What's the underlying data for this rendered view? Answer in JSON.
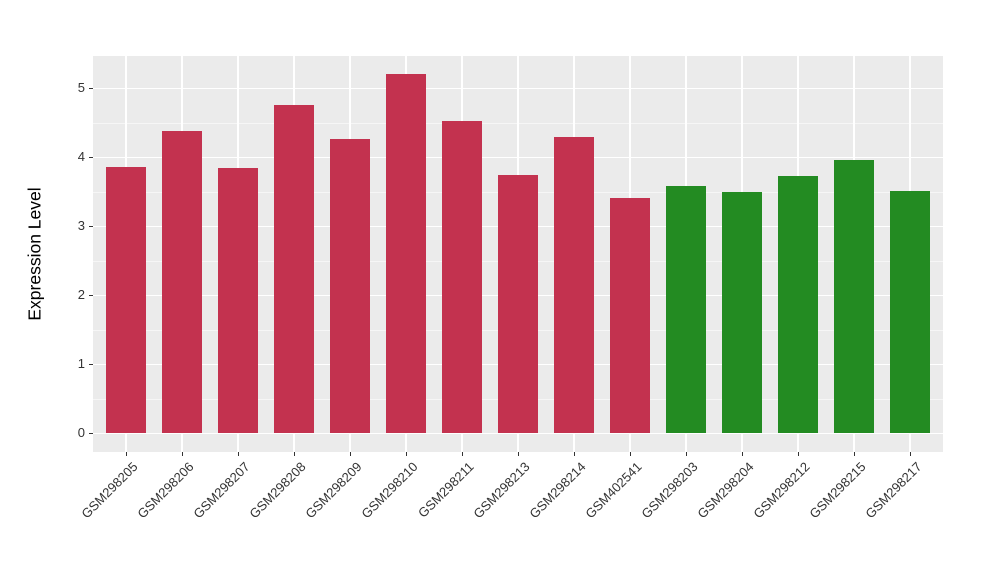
{
  "figure": {
    "background_color": "#FFFFFF",
    "panel_background_color": "#EBEBEB",
    "gridline_color": "#FFFFFF",
    "tick_label_color": "#333333",
    "tick_mark_color": "#333333",
    "axis_title_color": "#000000"
  },
  "chart_data": {
    "type": "bar",
    "title": "",
    "xlabel": "",
    "ylabel": "Expression Level",
    "categories": [
      "GSM298205",
      "GSM298206",
      "GSM298207",
      "GSM298208",
      "GSM298209",
      "GSM298210",
      "GSM298211",
      "GSM298213",
      "GSM298214",
      "GSM402541",
      "GSM298203",
      "GSM298204",
      "GSM298212",
      "GSM298215",
      "GSM298217"
    ],
    "values": [
      3.86,
      4.37,
      3.84,
      4.76,
      4.26,
      5.2,
      4.52,
      3.74,
      4.29,
      3.4,
      3.58,
      3.5,
      3.73,
      3.96,
      3.51
    ],
    "bar_groups": [
      "group1",
      "group1",
      "group1",
      "group1",
      "group1",
      "group1",
      "group1",
      "group1",
      "group1",
      "group1",
      "group2",
      "group2",
      "group2",
      "group2",
      "group2"
    ],
    "group_colors": {
      "group1": "#C3324F",
      "group2": "#238B22"
    },
    "yticks": [
      0,
      1,
      2,
      3,
      4,
      5
    ],
    "ylim": [
      -0.26,
      5.46
    ],
    "grid": "major-and-minor",
    "legend": false
  }
}
